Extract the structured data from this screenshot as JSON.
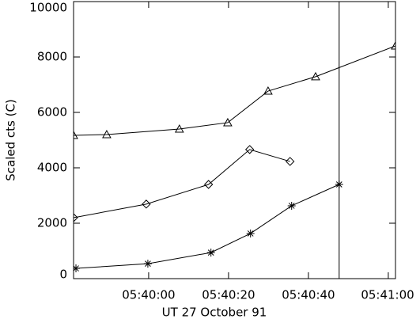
{
  "chart_data": {
    "type": "line",
    "xlabel": "UT 27 October 91",
    "ylabel": "Scaled cts (C)",
    "xlim": [
      -18.8,
      61.8
    ],
    "xticks": [
      {
        "value": 0,
        "label": "05:40:00"
      },
      {
        "value": 20,
        "label": "05:40:20"
      },
      {
        "value": 40,
        "label": "05:40:40"
      },
      {
        "value": 60,
        "label": "05:41:00"
      }
    ],
    "ylim": [
      0,
      10000
    ],
    "yticks": [
      0,
      2000,
      4000,
      6000,
      8000,
      10000
    ],
    "vline": 47.7,
    "series": [
      {
        "color": "#000000",
        "marker": "triangle",
        "x": [
          -18.8,
          -10.5,
          7.7,
          19.8,
          29.9,
          41.8,
          61.8
        ],
        "values": [
          5170,
          5200,
          5400,
          5630,
          6770,
          7290,
          8400
        ]
      },
      {
        "color": "#000000",
        "marker": "diamond",
        "x": [
          -18.8,
          -0.6,
          15.0,
          25.3,
          35.4
        ],
        "values": [
          2200,
          2690,
          3400,
          4660,
          4230
        ]
      },
      {
        "color": "#000000",
        "marker": "asterisk",
        "x": [
          -18.2,
          -0.2,
          15.6,
          25.5,
          35.8,
          47.7
        ],
        "values": [
          370,
          540,
          940,
          1630,
          2630,
          3400
        ]
      }
    ]
  }
}
